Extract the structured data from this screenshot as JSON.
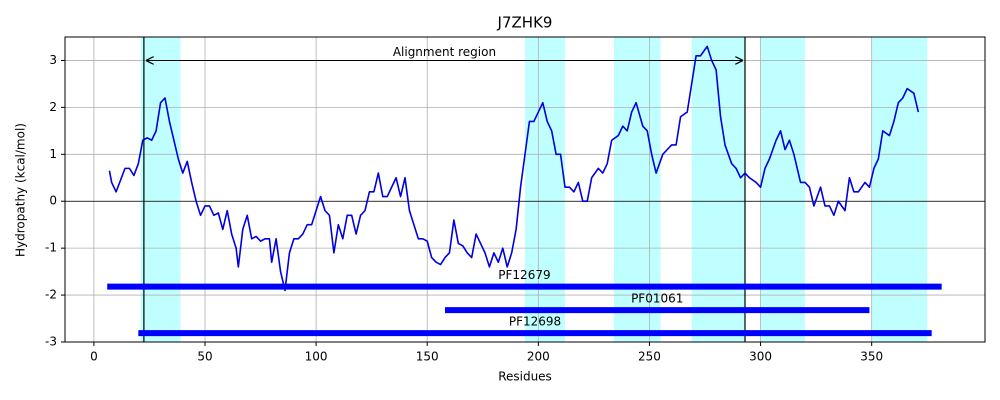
{
  "chart_data": {
    "type": "line",
    "title": "J7ZHK9",
    "x_label": "Residues",
    "y_label": "Hydropathy (kcal/mol)",
    "xlim": [
      -13,
      401
    ],
    "ylim": [
      -3,
      3.5
    ],
    "xticks": [
      0,
      50,
      100,
      150,
      200,
      250,
      300,
      350
    ],
    "yticks": [
      -3,
      -2,
      -1,
      0,
      1,
      2,
      3
    ],
    "grid": true,
    "hline": 0,
    "shade_color": "#bfffff",
    "shaded_regions": [
      [
        21,
        39
      ],
      [
        194,
        212
      ],
      [
        234,
        255
      ],
      [
        269,
        293
      ],
      [
        300,
        320
      ],
      [
        350,
        375
      ]
    ],
    "vlines": [
      22.5,
      293
    ],
    "annotation": {
      "text": "Alignment region",
      "start": 22.5,
      "end": 293,
      "y": 3
    },
    "domain_color": "#0000ff",
    "domains": [
      {
        "name": "PF12679",
        "start": 6,
        "end": 381.5,
        "y": -1.82
      },
      {
        "name": "PF01061",
        "start": 158,
        "end": 349,
        "y": -2.32
      },
      {
        "name": "PF12698",
        "start": 20,
        "end": 377,
        "y": -2.81
      }
    ],
    "series": [
      {
        "color": "#0000e0",
        "x": [
          7,
          8,
          10,
          12,
          14,
          16,
          18,
          20,
          22,
          24,
          26,
          28,
          30,
          32,
          34,
          36,
          38,
          40,
          42,
          44,
          46,
          48,
          50,
          52,
          54,
          56,
          58,
          60,
          62,
          64,
          65,
          67,
          69,
          71,
          73,
          75,
          77,
          79,
          80,
          82,
          84,
          86,
          88,
          90,
          92,
          94,
          96,
          98,
          100,
          102,
          104,
          106,
          108,
          110,
          112,
          114,
          116,
          118,
          120,
          122,
          124,
          126,
          128,
          130,
          132,
          134,
          136,
          138,
          140,
          142,
          144,
          146,
          148,
          150,
          152,
          154,
          156,
          158,
          160,
          162,
          164,
          166,
          168,
          170,
          172,
          174,
          176,
          178,
          180,
          182,
          184,
          186,
          188,
          190,
          192,
          194,
          196,
          198,
          200,
          202,
          204,
          206,
          208,
          210,
          212,
          214,
          216,
          218,
          220,
          222,
          224,
          227,
          229,
          231,
          233,
          236,
          238,
          240,
          242,
          244,
          247,
          249,
          251,
          253,
          256,
          258,
          260,
          262,
          264,
          267,
          269,
          271,
          273,
          276,
          278,
          280,
          282,
          284,
          287,
          289,
          291,
          293,
          295,
          298,
          300,
          302,
          304,
          307,
          309,
          311,
          313,
          315,
          318,
          320,
          322,
          324,
          327,
          329,
          331,
          333,
          335,
          338,
          340,
          342,
          344,
          347,
          349,
          351,
          353,
          355,
          358,
          360,
          362,
          364,
          366,
          369,
          371
        ],
        "values": [
          0.65,
          0.4,
          0.2,
          0.45,
          0.7,
          0.7,
          0.55,
          0.8,
          1.3,
          1.35,
          1.3,
          1.5,
          2.1,
          2.2,
          1.7,
          1.3,
          0.9,
          0.6,
          0.85,
          0.4,
          0.0,
          -0.3,
          -0.1,
          -0.1,
          -0.3,
          -0.25,
          -0.6,
          -0.2,
          -0.7,
          -1.0,
          -1.4,
          -0.6,
          -0.3,
          -0.8,
          -0.75,
          -0.85,
          -0.8,
          -0.8,
          -1.3,
          -0.8,
          -1.5,
          -1.9,
          -1.1,
          -0.8,
          -0.8,
          -0.7,
          -0.5,
          -0.5,
          -0.2,
          0.1,
          -0.2,
          -0.3,
          -1.1,
          -0.5,
          -0.8,
          -0.3,
          -0.3,
          -0.7,
          -0.3,
          -0.2,
          0.2,
          0.2,
          0.6,
          0.1,
          0.1,
          0.3,
          0.5,
          0.1,
          0.5,
          -0.2,
          -0.5,
          -0.8,
          -0.8,
          -0.85,
          -1.2,
          -1.3,
          -1.35,
          -1.2,
          -1.1,
          -0.4,
          -0.9,
          -0.95,
          -1.1,
          -1.2,
          -0.7,
          -0.9,
          -1.1,
          -1.4,
          -1.1,
          -1.3,
          -1.0,
          -1.4,
          -1.1,
          -0.6,
          0.3,
          1.0,
          1.7,
          1.7,
          1.9,
          2.1,
          1.7,
          1.5,
          1.0,
          1.0,
          0.3,
          0.3,
          0.2,
          0.4,
          0.0,
          0.0,
          0.5,
          0.7,
          0.6,
          0.8,
          1.3,
          1.4,
          1.6,
          1.5,
          1.9,
          2.1,
          1.6,
          1.5,
          1.0,
          0.6,
          1.0,
          1.1,
          1.2,
          1.2,
          1.8,
          1.9,
          2.5,
          3.1,
          3.1,
          3.3,
          3.0,
          2.8,
          1.8,
          1.2,
          0.8,
          0.7,
          0.5,
          0.6,
          0.5,
          0.4,
          0.3,
          0.7,
          0.9,
          1.3,
          1.5,
          1.1,
          1.3,
          1.0,
          0.4,
          0.4,
          0.3,
          -0.1,
          0.3,
          -0.1,
          -0.1,
          -0.3,
          0.0,
          -0.2,
          0.5,
          0.2,
          0.2,
          0.4,
          0.3,
          0.7,
          0.9,
          1.5,
          1.4,
          1.7,
          2.1,
          2.2,
          2.4,
          2.3,
          1.9
        ]
      }
    ]
  }
}
